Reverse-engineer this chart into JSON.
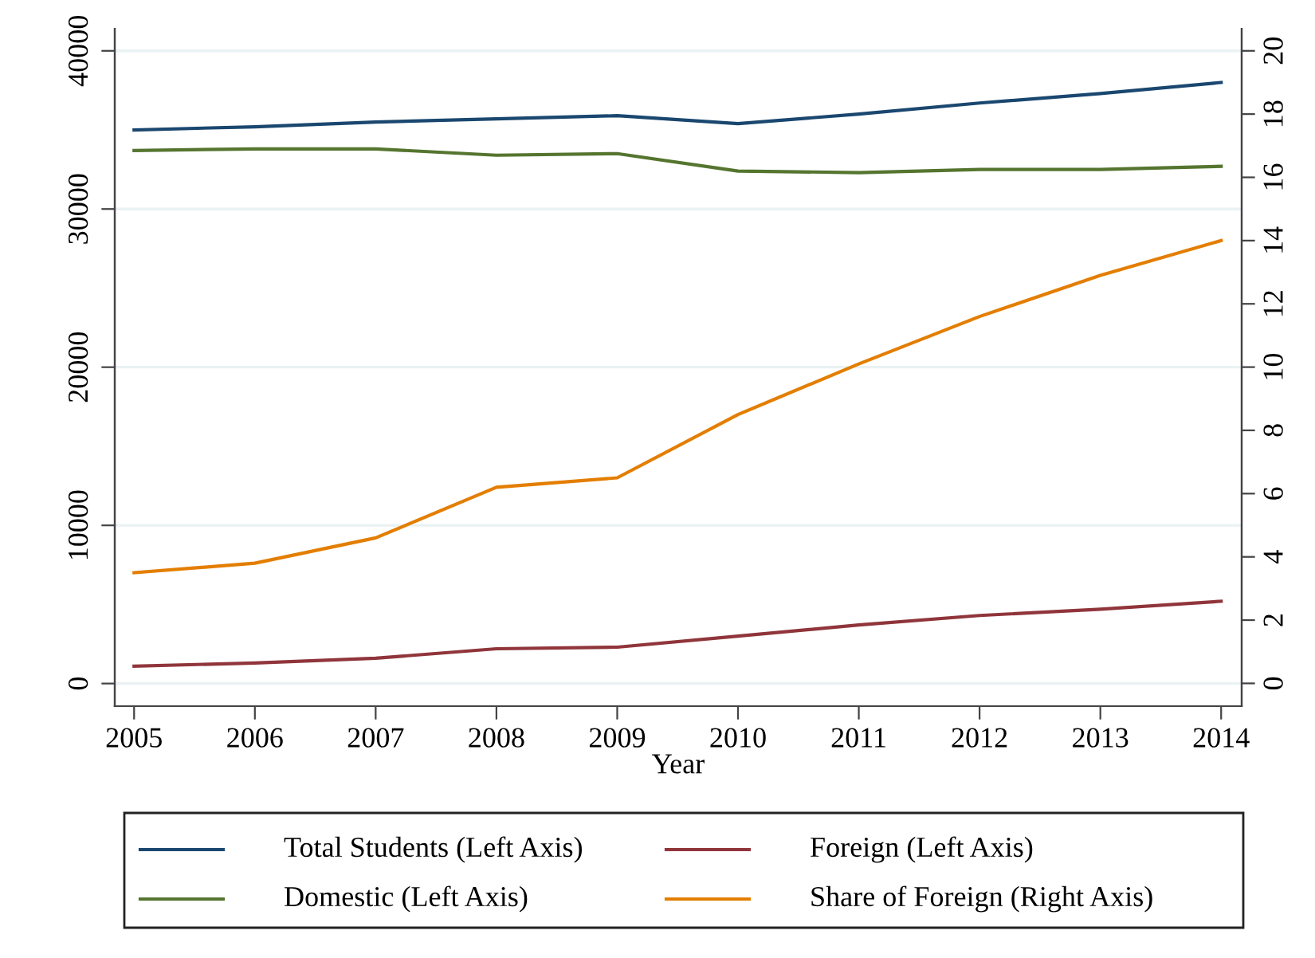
{
  "chart_data": {
    "type": "line",
    "xlabel": "Year",
    "x": [
      2005,
      2006,
      2007,
      2008,
      2009,
      2010,
      2011,
      2012,
      2013,
      2014
    ],
    "series": [
      {
        "name": "Total Students (Left Axis)",
        "color": "#1a476f",
        "values": [
          35000,
          35200,
          35500,
          35700,
          35900,
          35400,
          36000,
          36700,
          37300,
          38000
        ]
      },
      {
        "name": "Foreign (Left Axis)",
        "color": "#90353b",
        "values": [
          1100,
          1300,
          1600,
          2200,
          2300,
          3000,
          3700,
          4300,
          4700,
          5200
        ]
      },
      {
        "name": "Domestic (Left Axis)",
        "color": "#55752f",
        "values": [
          33700,
          33800,
          33800,
          33400,
          33500,
          32400,
          32300,
          32500,
          32500,
          32700
        ]
      },
      {
        "name": "Share of Foreign (Right Axis)",
        "color": "#e37e00",
        "axis": "y2",
        "values": [
          3.5,
          3.8,
          4.6,
          6.2,
          6.5,
          8.5,
          10.1,
          11.6,
          12.9,
          14.0
        ]
      }
    ],
    "xlim": [
      2004.84,
      2014.17
    ],
    "xticks": [
      2005,
      2006,
      2007,
      2008,
      2009,
      2010,
      2011,
      2012,
      2013,
      2014
    ],
    "ylim": [
      -1430,
      41400
    ],
    "yticks": [
      0,
      10000,
      20000,
      30000,
      40000
    ],
    "y2lim": [
      -0.72,
      20.7
    ],
    "y2ticks": [
      0,
      2,
      4,
      6,
      8,
      10,
      12,
      14,
      16,
      18,
      20
    ],
    "grid": "y",
    "legend": "bottom",
    "marker": "none",
    "line_style": "solid"
  }
}
